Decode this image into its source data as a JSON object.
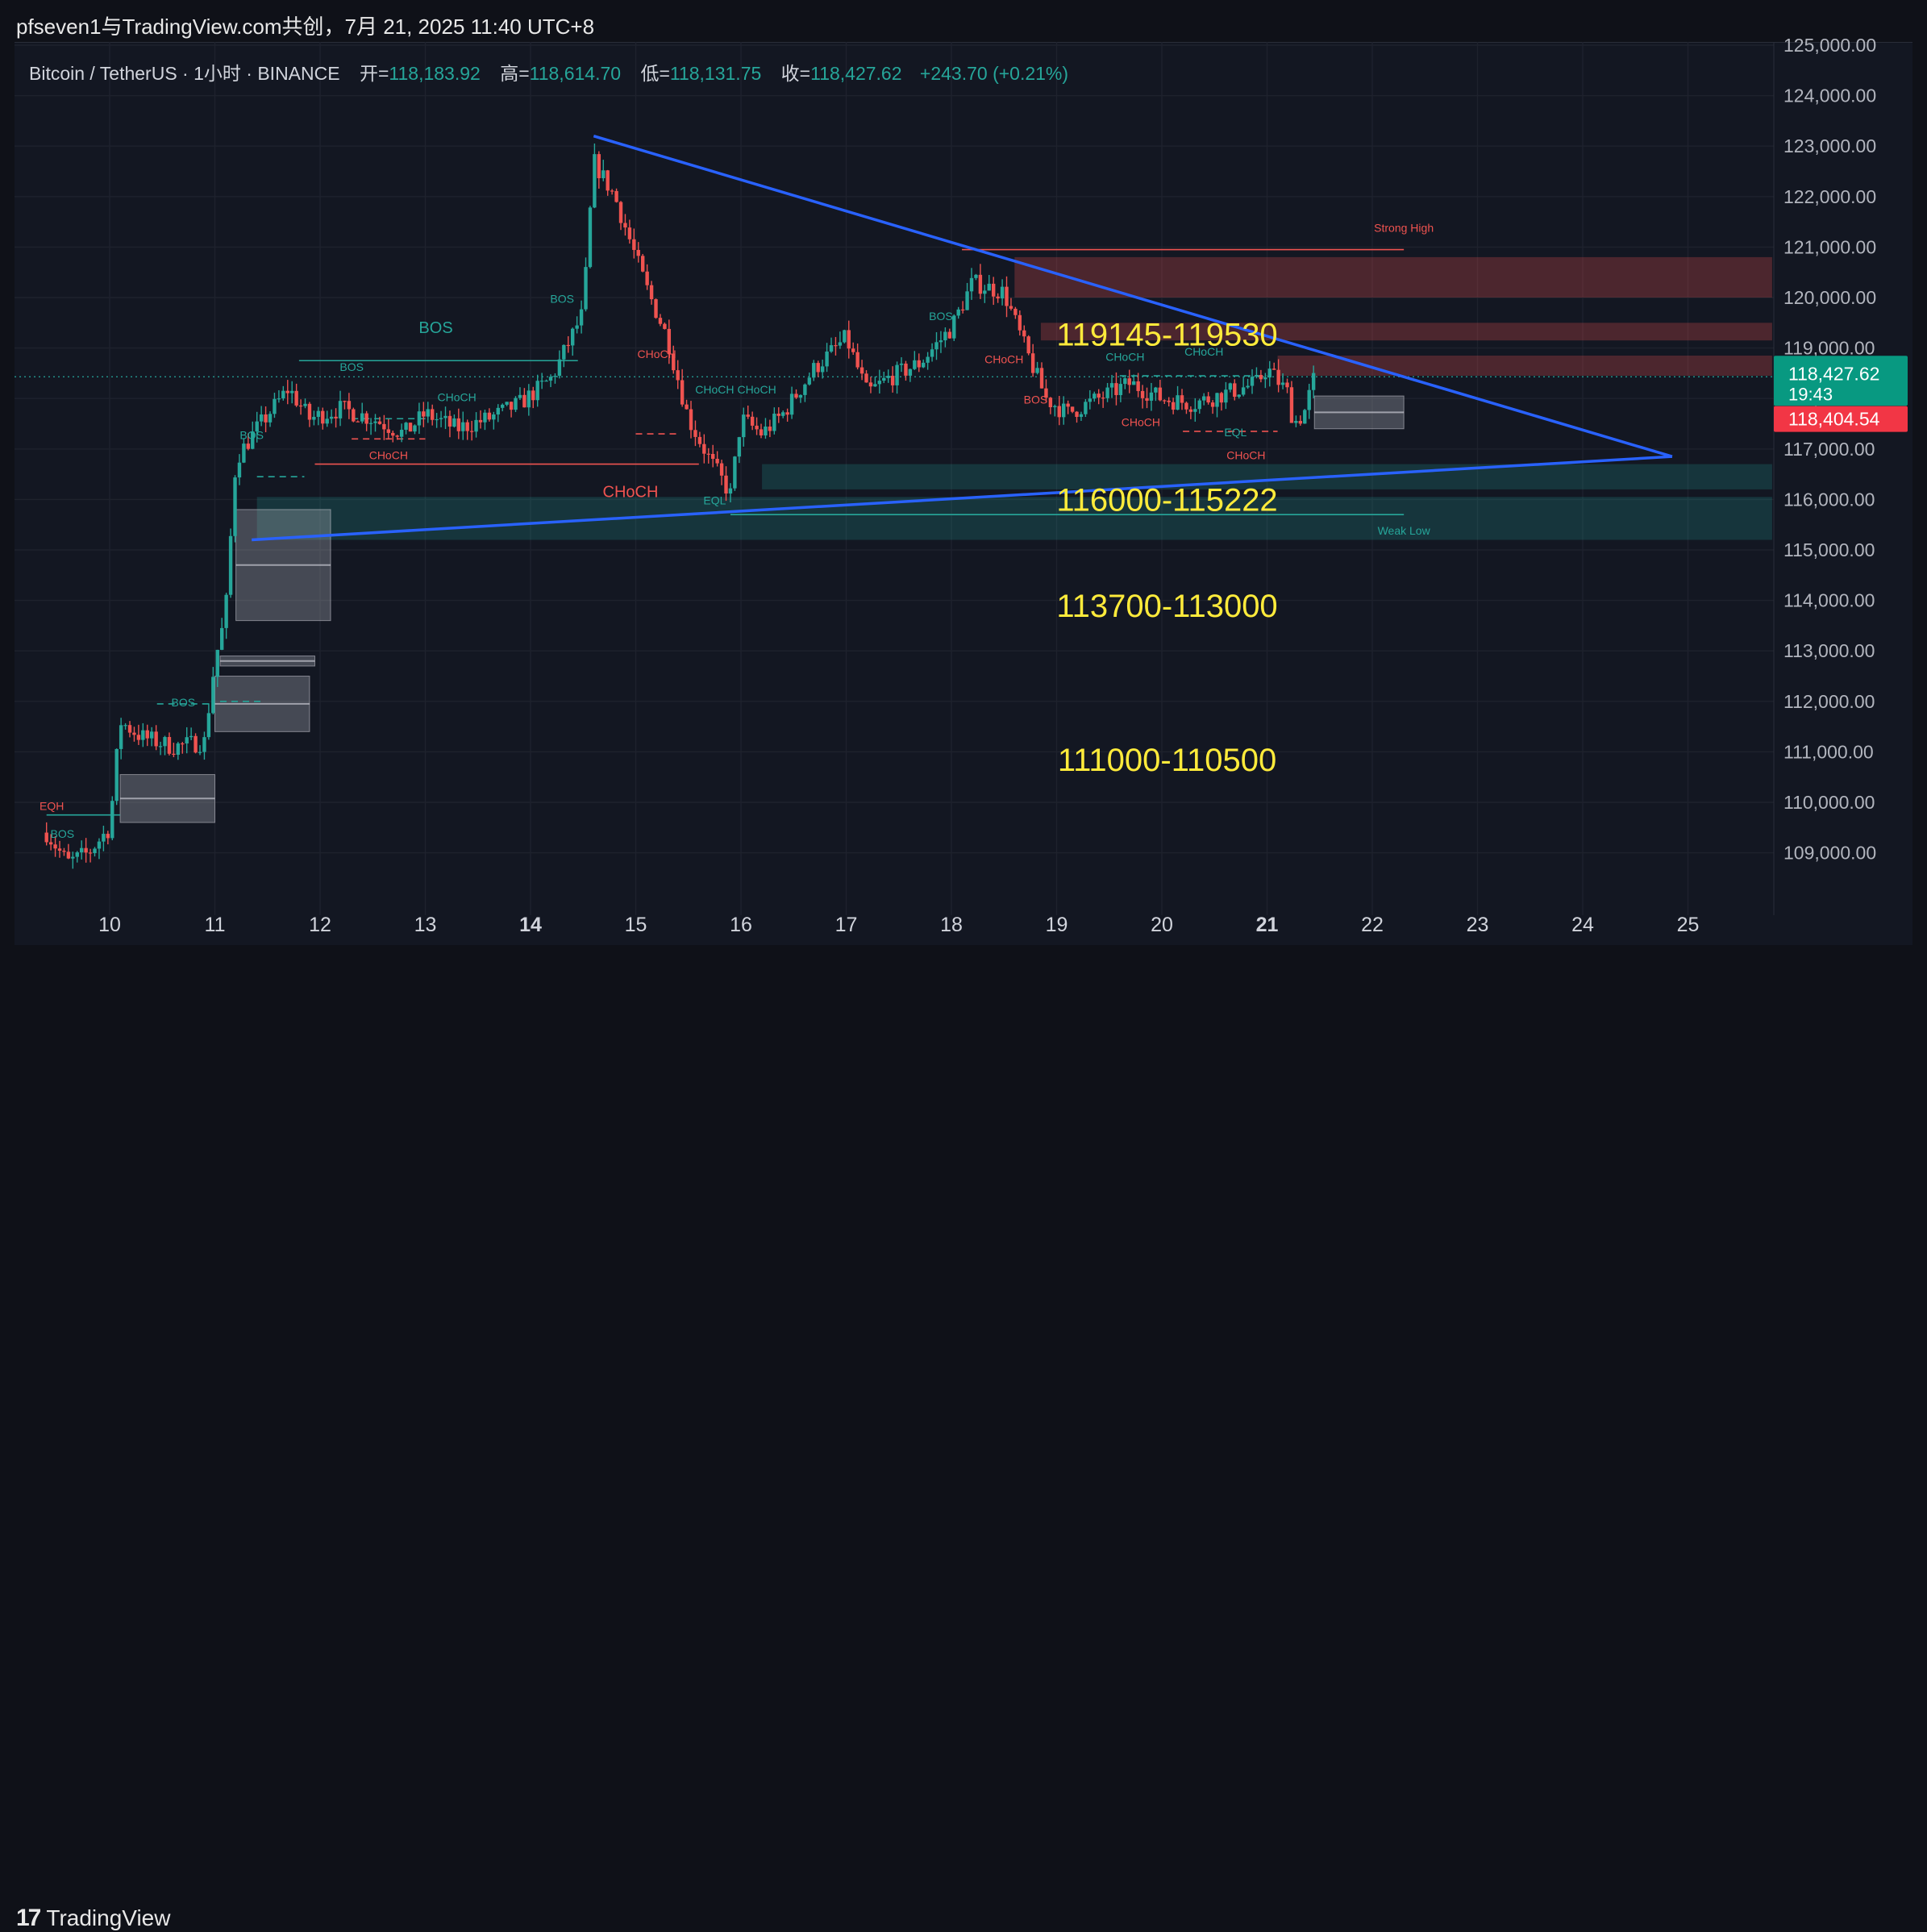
{
  "header": {
    "caption": "pfseven1与TradingView.com共创，7月 21, 2025 11:40 UTC+8"
  },
  "legend": {
    "symbol": "Bitcoin / TetherUS · 1小时 · BINANCE",
    "open_label": "开=",
    "open_value": "118,183.92",
    "high_label": "高=",
    "high_value": "118,614.70",
    "low_label": "低=",
    "low_value": "118,131.75",
    "close_label": "收=",
    "close_value": "118,427.62",
    "change": "+243.70 (+0.21%)"
  },
  "footer": {
    "logo_mark": "17",
    "logo_text": "TradingView"
  },
  "price_tags": {
    "last_price": "118,427.62",
    "countdown": "19:43",
    "other_price": "118,404.54"
  },
  "colors": {
    "up": "#26a69a",
    "down": "#ef5350",
    "trendline": "#2962ff",
    "annotation": "#ffeb3b",
    "bos_green": "#26a69a",
    "choch_red": "#ef5350"
  },
  "chart_data": {
    "type": "candlestick",
    "title": "",
    "xlabel": "",
    "ylabel": "",
    "ylim": [
      108700,
      125000
    ],
    "y_ticks": [
      "125,000.00",
      "124,000.00",
      "123,000.00",
      "122,000.00",
      "121,000.00",
      "120,000.00",
      "119,000.00",
      "118,000.00",
      "117,000.00",
      "116,000.00",
      "115,000.00",
      "114,000.00",
      "113,000.00",
      "112,000.00",
      "111,000.00",
      "110,000.00",
      "109,000.00"
    ],
    "x_ticks": [
      "10",
      "11",
      "12",
      "13",
      "14",
      "15",
      "16",
      "17",
      "18",
      "19",
      "20",
      "21",
      "22",
      "23",
      "24",
      "25"
    ],
    "bold_x_ticks": [
      "14",
      "21"
    ],
    "series_path": [
      [
        9.4,
        109400
      ],
      [
        9.6,
        108800
      ],
      [
        9.8,
        109000
      ],
      [
        10.0,
        109500
      ],
      [
        10.1,
        111600
      ],
      [
        10.3,
        111300
      ],
      [
        10.6,
        111100
      ],
      [
        10.9,
        111200
      ],
      [
        11.0,
        112800
      ],
      [
        11.1,
        113700
      ],
      [
        11.2,
        116800
      ],
      [
        11.4,
        117400
      ],
      [
        11.7,
        118200
      ],
      [
        11.9,
        117600
      ],
      [
        12.2,
        117800
      ],
      [
        12.5,
        117600
      ],
      [
        12.8,
        117300
      ],
      [
        13.0,
        117700
      ],
      [
        13.3,
        117400
      ],
      [
        13.6,
        117600
      ],
      [
        13.9,
        117900
      ],
      [
        14.2,
        118400
      ],
      [
        14.5,
        119700
      ],
      [
        14.6,
        122700
      ],
      [
        14.8,
        122000
      ],
      [
        14.95,
        121100
      ],
      [
        15.1,
        120200
      ],
      [
        15.3,
        119200
      ],
      [
        15.5,
        117600
      ],
      [
        15.7,
        116800
      ],
      [
        15.9,
        116100
      ],
      [
        16.0,
        117600
      ],
      [
        16.2,
        117300
      ],
      [
        16.4,
        117700
      ],
      [
        16.7,
        118600
      ],
      [
        17.0,
        119200
      ],
      [
        17.2,
        118100
      ],
      [
        17.4,
        118400
      ],
      [
        17.7,
        118700
      ],
      [
        18.0,
        119400
      ],
      [
        18.2,
        120300
      ],
      [
        18.5,
        120100
      ],
      [
        18.7,
        119000
      ],
      [
        18.9,
        118000
      ],
      [
        19.1,
        117700
      ],
      [
        19.4,
        118000
      ],
      [
        19.7,
        118300
      ],
      [
        20.0,
        118000
      ],
      [
        20.3,
        117900
      ],
      [
        20.6,
        118100
      ],
      [
        20.9,
        118300
      ],
      [
        21.0,
        118600
      ],
      [
        21.2,
        118100
      ],
      [
        21.25,
        117500
      ],
      [
        21.35,
        117700
      ],
      [
        21.45,
        118430
      ]
    ],
    "trendlines": [
      {
        "from": [
          14.6,
          123200
        ],
        "to": [
          24.85,
          116850
        ]
      },
      {
        "from": [
          11.35,
          115200
        ],
        "to": [
          24.85,
          116850
        ]
      }
    ],
    "zones": [
      {
        "type": "supply",
        "x_from": 18.6,
        "x_to": 25.8,
        "y_from": 120000,
        "y_to": 120800
      },
      {
        "type": "supply",
        "x_from": 18.85,
        "x_to": 25.8,
        "y_from": 119150,
        "y_to": 119500
      },
      {
        "type": "supply",
        "x_from": 21.1,
        "x_to": 25.8,
        "y_from": 118450,
        "y_to": 118850
      },
      {
        "type": "demand",
        "x_from": 16.2,
        "x_to": 25.8,
        "y_from": 116200,
        "y_to": 116700
      },
      {
        "type": "demand",
        "x_from": 11.4,
        "x_to": 25.8,
        "y_from": 115200,
        "y_to": 116050
      }
    ],
    "order_blocks": [
      {
        "x_from": 11.2,
        "x_to": 12.1,
        "y_from": 113600,
        "y_to": 115800
      },
      {
        "x_from": 11.05,
        "x_to": 11.95,
        "y_from": 112700,
        "y_to": 112900
      },
      {
        "x_from": 11.0,
        "x_to": 11.9,
        "y_from": 111400,
        "y_to": 112500
      },
      {
        "x_from": 10.1,
        "x_to": 11.0,
        "y_from": 109600,
        "y_to": 110550
      },
      {
        "x_from": 21.45,
        "x_to": 22.3,
        "y_from": 117400,
        "y_to": 118050
      }
    ],
    "structure_labels": [
      {
        "text": "BOS",
        "x": 13.1,
        "y": 119300,
        "color": "green",
        "size": "large"
      },
      {
        "text": "BOS",
        "x": 12.3,
        "y": 118550,
        "color": "green",
        "size": "small"
      },
      {
        "text": "BOS",
        "x": 11.35,
        "y": 117200,
        "color": "green",
        "size": "small"
      },
      {
        "text": "BOS",
        "x": 14.3,
        "y": 119900,
        "color": "green",
        "size": "small"
      },
      {
        "text": "BOS",
        "x": 10.7,
        "y": 111900,
        "color": "green",
        "size": "small"
      },
      {
        "text": "BOS",
        "x": 9.55,
        "y": 109300,
        "color": "green",
        "size": "small"
      },
      {
        "text": "BOS",
        "x": 17.9,
        "y": 119550,
        "color": "green",
        "size": "small"
      },
      {
        "text": "BOS",
        "x": 18.8,
        "y": 117900,
        "color": "red",
        "size": "small"
      },
      {
        "text": "CHoCH",
        "x": 13.3,
        "y": 117950,
        "color": "green",
        "size": "small"
      },
      {
        "text": "CHoCH",
        "x": 12.65,
        "y": 116800,
        "color": "red",
        "size": "small"
      },
      {
        "text": "CHoCH",
        "x": 14.95,
        "y": 116050,
        "color": "red",
        "size": "large"
      },
      {
        "text": "CHoCH",
        "x": 15.2,
        "y": 118800,
        "color": "red",
        "size": "small"
      },
      {
        "text": "CHoCH",
        "x": 15.75,
        "y": 118100,
        "color": "green",
        "size": "small"
      },
      {
        "text": "CHoCH",
        "x": 16.15,
        "y": 118100,
        "color": "green",
        "size": "small"
      },
      {
        "text": "CHoCH",
        "x": 18.5,
        "y": 118700,
        "color": "red",
        "size": "small"
      },
      {
        "text": "CHoCH",
        "x": 19.65,
        "y": 118750,
        "color": "green",
        "size": "small"
      },
      {
        "text": "CHoCH",
        "x": 20.4,
        "y": 118850,
        "color": "green",
        "size": "small"
      },
      {
        "text": "CHoCH",
        "x": 19.8,
        "y": 117450,
        "color": "red",
        "size": "small"
      },
      {
        "text": "CHoCH",
        "x": 20.8,
        "y": 116800,
        "color": "red",
        "size": "small"
      },
      {
        "text": "EQL",
        "x": 20.7,
        "y": 117250,
        "color": "green",
        "size": "small"
      },
      {
        "text": "EQL",
        "x": 15.75,
        "y": 115900,
        "color": "green",
        "size": "small"
      },
      {
        "text": "EQH",
        "x": 9.45,
        "y": 109850,
        "color": "red",
        "size": "small"
      },
      {
        "text": "Strong High",
        "x": 22.3,
        "y": 121300,
        "color": "red",
        "size": "small"
      },
      {
        "text": "Weak Low",
        "x": 22.3,
        "y": 115300,
        "color": "green",
        "size": "small"
      }
    ],
    "annotations": [
      {
        "text": "119145-119530",
        "x": 20.05,
        "y": 119270
      },
      {
        "text": "116000-115222",
        "x": 20.05,
        "y": 116000
      },
      {
        "text": "113700-113000",
        "x": 20.05,
        "y": 113900
      },
      {
        "text": "111000-110500",
        "x": 20.05,
        "y": 110850
      }
    ]
  }
}
